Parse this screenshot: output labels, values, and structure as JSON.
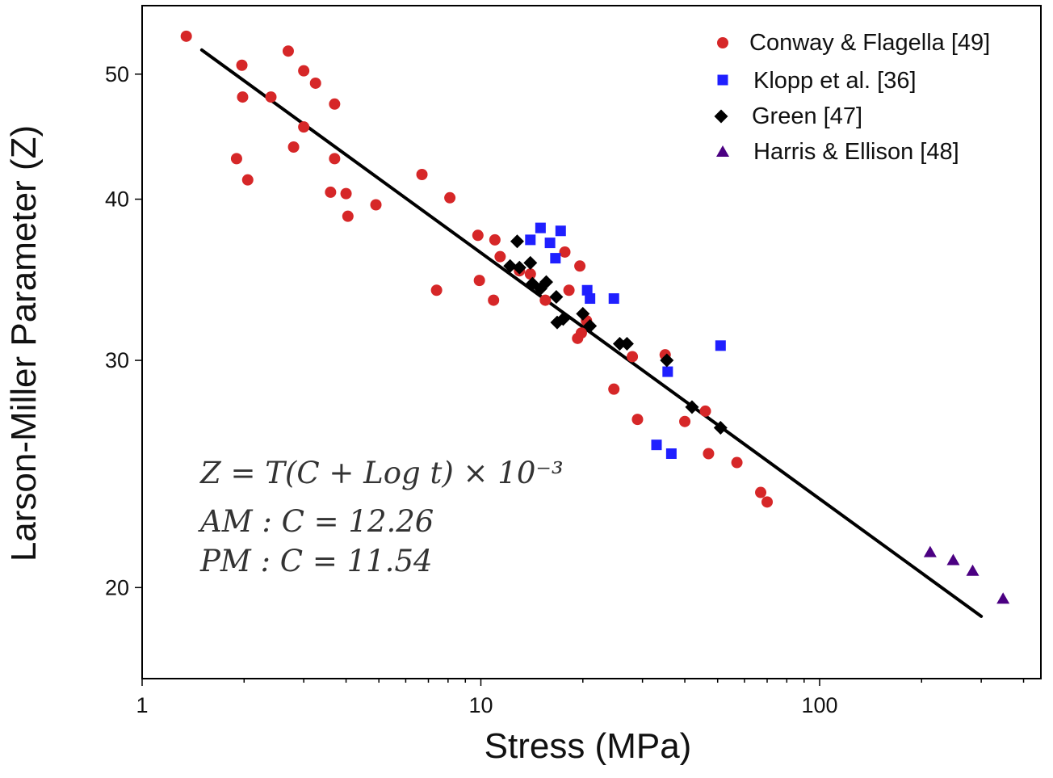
{
  "chart_data": {
    "type": "scatter",
    "title": "",
    "xlabel": "Stress (MPa)",
    "ylabel": "Larson-Miller Parameter (Z)",
    "xscale": "log",
    "yscale": "log",
    "xlim": [
      1,
      450
    ],
    "ylim": [
      17.0,
      56.5
    ],
    "xticks": [
      1,
      10,
      100
    ],
    "xtick_labels": [
      "1",
      "10",
      "100"
    ],
    "yticks": [
      20,
      30,
      40,
      50
    ],
    "ytick_labels": [
      "20",
      "30",
      "40",
      "50"
    ],
    "grid": false,
    "legend_position": "top-right",
    "series": [
      {
        "name": "Conway & Flagella [49]",
        "marker": "circle",
        "color": "#d62728",
        "points": [
          [
            1.35,
            53.5
          ],
          [
            1.9,
            43.0
          ],
          [
            1.97,
            50.8
          ],
          [
            1.98,
            48.0
          ],
          [
            2.05,
            41.4
          ],
          [
            2.4,
            48.0
          ],
          [
            2.7,
            52.1
          ],
          [
            2.8,
            43.9
          ],
          [
            3.0,
            45.5
          ],
          [
            3.0,
            50.3
          ],
          [
            3.25,
            49.2
          ],
          [
            3.6,
            40.5
          ],
          [
            3.7,
            47.4
          ],
          [
            3.7,
            43.0
          ],
          [
            4.0,
            40.4
          ],
          [
            4.05,
            38.8
          ],
          [
            4.9,
            39.6
          ],
          [
            6.7,
            41.8
          ],
          [
            7.4,
            34.0
          ],
          [
            8.1,
            40.1
          ],
          [
            9.8,
            37.5
          ],
          [
            9.9,
            34.6
          ],
          [
            10.9,
            33.4
          ],
          [
            11.0,
            37.2
          ],
          [
            11.4,
            36.1
          ],
          [
            13.0,
            35.2
          ],
          [
            14.0,
            35.0
          ],
          [
            15.5,
            33.4
          ],
          [
            17.7,
            36.4
          ],
          [
            18.2,
            34.0
          ],
          [
            19.3,
            31.2
          ],
          [
            19.6,
            35.5
          ],
          [
            19.8,
            31.5
          ],
          [
            20.5,
            32.2
          ],
          [
            24.7,
            28.5
          ],
          [
            28.0,
            30.2
          ],
          [
            29.0,
            27.0
          ],
          [
            35.0,
            30.3
          ],
          [
            40.0,
            26.9
          ],
          [
            46.0,
            27.4
          ],
          [
            47.0,
            25.4
          ],
          [
            57.0,
            25.0
          ],
          [
            67.0,
            23.7
          ],
          [
            70.0,
            23.3
          ]
        ]
      },
      {
        "name": "Klopp et al. [36]",
        "marker": "square",
        "color": "#1f1fff",
        "points": [
          [
            14.0,
            37.2
          ],
          [
            15.0,
            38.0
          ],
          [
            16.0,
            37.0
          ],
          [
            16.6,
            36.0
          ],
          [
            17.2,
            37.8
          ],
          [
            20.6,
            34.0
          ],
          [
            21.0,
            33.5
          ],
          [
            24.7,
            33.5
          ],
          [
            33.0,
            25.8
          ],
          [
            35.6,
            29.4
          ],
          [
            36.5,
            25.4
          ],
          [
            51.0,
            30.8
          ]
        ]
      },
      {
        "name": "Green [47]",
        "marker": "diamond",
        "color": "#000000",
        "points": [
          [
            12.2,
            35.5
          ],
          [
            12.8,
            37.1
          ],
          [
            13.0,
            35.4
          ],
          [
            14.0,
            35.7
          ],
          [
            14.2,
            34.4
          ],
          [
            15.0,
            34.1
          ],
          [
            15.6,
            34.5
          ],
          [
            16.7,
            33.6
          ],
          [
            16.8,
            32.1
          ],
          [
            17.5,
            32.3
          ],
          [
            20.0,
            32.6
          ],
          [
            21.0,
            31.9
          ],
          [
            25.7,
            30.9
          ],
          [
            27.0,
            30.9
          ],
          [
            35.4,
            30.0
          ],
          [
            42.0,
            27.6
          ],
          [
            51.0,
            26.6
          ]
        ]
      },
      {
        "name": "Harris & Ellison [48]",
        "marker": "triangle",
        "color": "#4b0082",
        "points": [
          [
            212.0,
            21.3
          ],
          [
            248.0,
            21.0
          ],
          [
            283.0,
            20.6
          ],
          [
            348.0,
            19.6
          ]
        ]
      },
      {
        "name": "",
        "kind": "fit-line",
        "color": "#000000",
        "points": [
          [
            1.5,
            52.2
          ],
          [
            300.0,
            19.0
          ]
        ]
      }
    ],
    "annotations": [
      "Z = T(C + Log t) × 10⁻³",
      "AM : C  =  12.26",
      "PM : C  =  11.54"
    ]
  }
}
